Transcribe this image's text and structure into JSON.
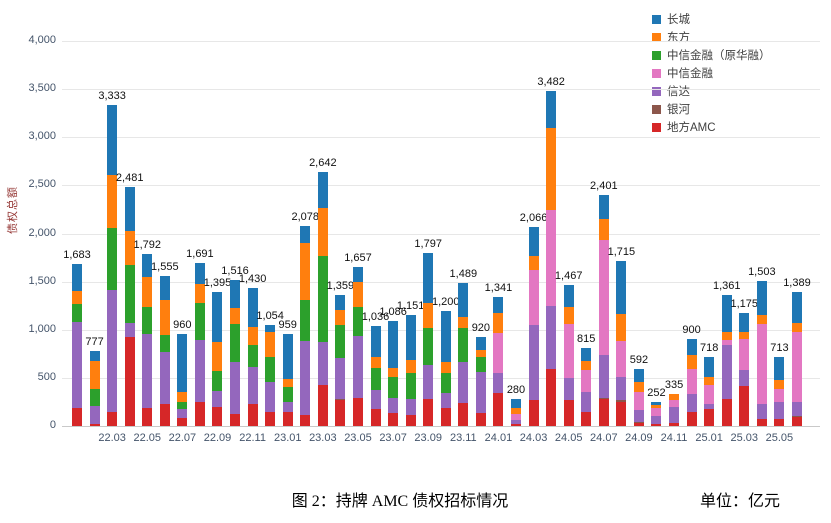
{
  "caption": {
    "figure_label": "图 2：持牌 AMC 债权招标情况",
    "unit_label": "单位：亿元"
  },
  "legend": [
    {
      "label": "长城",
      "color": "#1F77B4"
    },
    {
      "label": "东方",
      "color": "#FF7F0E"
    },
    {
      "label": "中信金融（原华融）",
      "color": "#2CA02C"
    },
    {
      "label": "中信金融",
      "color": "#E377C2"
    },
    {
      "label": "信达",
      "color": "#9467BD"
    },
    {
      "label": "银河",
      "color": "#8C564B"
    },
    {
      "label": "地方AMC",
      "color": "#D62728"
    }
  ],
  "chart_data": {
    "type": "bar",
    "stacked": true,
    "title": "图 2：持牌 AMC 债权招标情况",
    "ylabel": "债权总额",
    "unit": "亿元",
    "ylim": [
      0,
      4000
    ],
    "y_ticks": [
      0,
      500,
      1000,
      1500,
      2000,
      2500,
      3000,
      3500,
      4000
    ],
    "grid": true,
    "legend_position": "top-right",
    "x": [
      "22.01",
      "22.02",
      "22.03",
      "22.04",
      "22.05",
      "22.06",
      "22.07",
      "22.08",
      "22.09",
      "22.10",
      "22.11",
      "22.12",
      "23.01",
      "23.02",
      "23.03",
      "23.04",
      "23.05",
      "23.06",
      "23.07",
      "23.08",
      "23.09",
      "23.10",
      "23.11",
      "23.12",
      "24.01",
      "24.02",
      "24.03",
      "24.04",
      "24.05",
      "24.06",
      "24.07",
      "24.08",
      "24.09",
      "24.10",
      "24.11",
      "24.12",
      "25.01",
      "25.02",
      "25.03",
      "25.04",
      "25.05",
      "25.06"
    ],
    "x_ticks_shown": [
      "22.03",
      "22.05",
      "22.07",
      "22.09",
      "22.11",
      "23.01",
      "23.03",
      "23.05",
      "23.07",
      "23.09",
      "23.11",
      "24.01",
      "24.03",
      "24.05",
      "24.07",
      "24.09",
      "24.11",
      "25.01",
      "25.03",
      "25.05"
    ],
    "totals": [
      1683,
      777,
      3333,
      2481,
      1792,
      1555,
      960,
      1691,
      1395,
      1516,
      1430,
      1054,
      959,
      2078,
      2642,
      1359,
      1657,
      1036,
      1086,
      1151,
      1797,
      1200,
      1489,
      920,
      1341,
      280,
      2066,
      3482,
      1467,
      815,
      2401,
      1715,
      592,
      252,
      335,
      900,
      718,
      1361,
      1175,
      1503,
      713,
      1389
    ],
    "total_labels": [
      "1,683",
      "777",
      "3,333",
      "2,481",
      "1,792",
      "1,555",
      "960",
      "1,691",
      "1,395",
      "1,516",
      "1,430",
      "1,054",
      "959",
      "2,078",
      "2,642",
      "1,359",
      "1,657",
      "1,036",
      "1,086",
      "1,151",
      "1,797",
      "1,200",
      "1,489",
      "920",
      "1,341",
      "280",
      "2,066",
      "3,482",
      "1,467",
      "815",
      "2,401",
      "1,715",
      "592",
      "252",
      "335",
      "900",
      "718",
      "1,361",
      "1,175",
      "1,503",
      "713",
      "1,389"
    ],
    "series": [
      {
        "name": "地方AMC",
        "color": "#D62728",
        "values": [
          182,
          20,
          145,
          920,
          190,
          230,
          85,
          252,
          194,
          124,
          228,
          141,
          141,
          110,
          425,
          270,
          287,
          180,
          130,
          111,
          285,
          182,
          234,
          140,
          340,
          25,
          266,
          596,
          270,
          150,
          283,
          250,
          35,
          17,
          30,
          143,
          178,
          282,
          420,
          73,
          73,
          97
        ]
      },
      {
        "name": "银河",
        "color": "#8C564B",
        "values": [
          0,
          0,
          0,
          0,
          0,
          0,
          0,
          0,
          0,
          0,
          0,
          0,
          0,
          0,
          0,
          12,
          0,
          0,
          0,
          0,
          0,
          0,
          0,
          0,
          0,
          0,
          0,
          0,
          0,
          0,
          12,
          15,
          8,
          0,
          0,
          0,
          0,
          0,
          0,
          0,
          0,
          11
        ]
      },
      {
        "name": "信达",
        "color": "#9467BD",
        "values": [
          900,
          190,
          1267,
          150,
          770,
          540,
          95,
          642,
          174,
          540,
          383,
          314,
          107,
          770,
          445,
          421,
          645,
          195,
          156,
          174,
          348,
          156,
          435,
          420,
          209,
          35,
          780,
          654,
          230,
          200,
          440,
          240,
          120,
          85,
          170,
          192,
          53,
          557,
          157,
          156,
          175,
          139
        ]
      },
      {
        "name": "中信金融",
        "color": "#E377C2",
        "values": [
          0,
          0,
          0,
          0,
          0,
          0,
          0,
          0,
          0,
          0,
          0,
          0,
          0,
          0,
          0,
          0,
          0,
          0,
          0,
          0,
          0,
          0,
          0,
          0,
          415,
          60,
          570,
          990,
          560,
          230,
          1200,
          380,
          190,
          90,
          75,
          261,
          191,
          52,
          331,
          835,
          139,
          731
        ]
      },
      {
        "name": "中信金融（原华融）",
        "color": "#2CA02C",
        "values": [
          190,
          175,
          645,
          600,
          280,
          180,
          70,
          382,
          208,
          400,
          227,
          261,
          156,
          430,
          900,
          344,
          308,
          225,
          226,
          261,
          383,
          209,
          347,
          157,
          0,
          0,
          0,
          0,
          0,
          0,
          0,
          0,
          0,
          0,
          0,
          0,
          0,
          0,
          0,
          0,
          0,
          0
        ]
      },
      {
        "name": "东方",
        "color": "#FF7F0E",
        "values": [
          130,
          295,
          553,
          360,
          310,
          360,
          100,
          204,
          297,
          157,
          191,
          261,
          87,
          590,
          500,
          156,
          261,
          122,
          87,
          140,
          257,
          122,
          115,
          70,
          206,
          62,
          150,
          860,
          180,
          100,
          220,
          280,
          105,
          30,
          60,
          139,
          87,
          87,
          70,
          87,
          87,
          87
        ]
      },
      {
        "name": "长城",
        "color": "#1F77B4",
        "values": [
          281,
          97,
          723,
          451,
          242,
          245,
          610,
          211,
          522,
          295,
          401,
          77,
          468,
          178,
          372,
          156,
          156,
          314,
          487,
          465,
          524,
          531,
          358,
          133,
          171,
          98,
          300,
          382,
          227,
          135,
          246,
          550,
          134,
          30,
          0,
          165,
          209,
          383,
          197,
          352,
          239,
          324
        ]
      }
    ]
  }
}
